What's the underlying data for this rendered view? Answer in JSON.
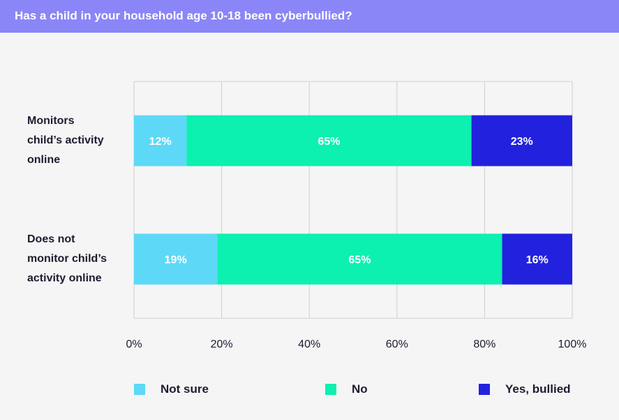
{
  "header": {
    "title": "Has a child in your household age 10-18 been cyberbullied?"
  },
  "colors": {
    "header_bg": "#8a86f7",
    "not_sure": "#5ed8f7",
    "no": "#0cf0b0",
    "yes_bullied": "#2222de",
    "grid": "#cfcfd4"
  },
  "chart_data": {
    "type": "bar",
    "orientation": "horizontal",
    "stacked": true,
    "title": "Has a child in your household age 10-18 been cyberbullied?",
    "categories": [
      "Monitors child’s activity online",
      "Does not monitor child’s activity online"
    ],
    "category_lines": [
      [
        "Monitors",
        "child’s activity",
        "online"
      ],
      [
        "Does not",
        "monitor child’s",
        "activity online"
      ]
    ],
    "series": [
      {
        "name": "Not sure",
        "values": [
          12,
          19
        ],
        "labels": [
          "12%",
          "19%"
        ],
        "color": "#5ed8f7"
      },
      {
        "name": "No",
        "values": [
          65,
          65
        ],
        "labels": [
          "65%",
          "65%"
        ],
        "color": "#0cf0b0"
      },
      {
        "name": "Yes, bullied",
        "values": [
          23,
          16
        ],
        "labels": [
          "23%",
          "16%"
        ],
        "color": "#2222de"
      }
    ],
    "xlim": [
      0,
      100
    ],
    "xticks": [
      "0%",
      "20%",
      "40%",
      "60%",
      "80%",
      "100%"
    ],
    "grid": true,
    "legend_position": "bottom"
  },
  "legend": [
    {
      "label": "Not sure",
      "color": "#5ed8f7"
    },
    {
      "label": "No",
      "color": "#0cf0b0"
    },
    {
      "label": "Yes, bullied",
      "color": "#2222de"
    }
  ]
}
